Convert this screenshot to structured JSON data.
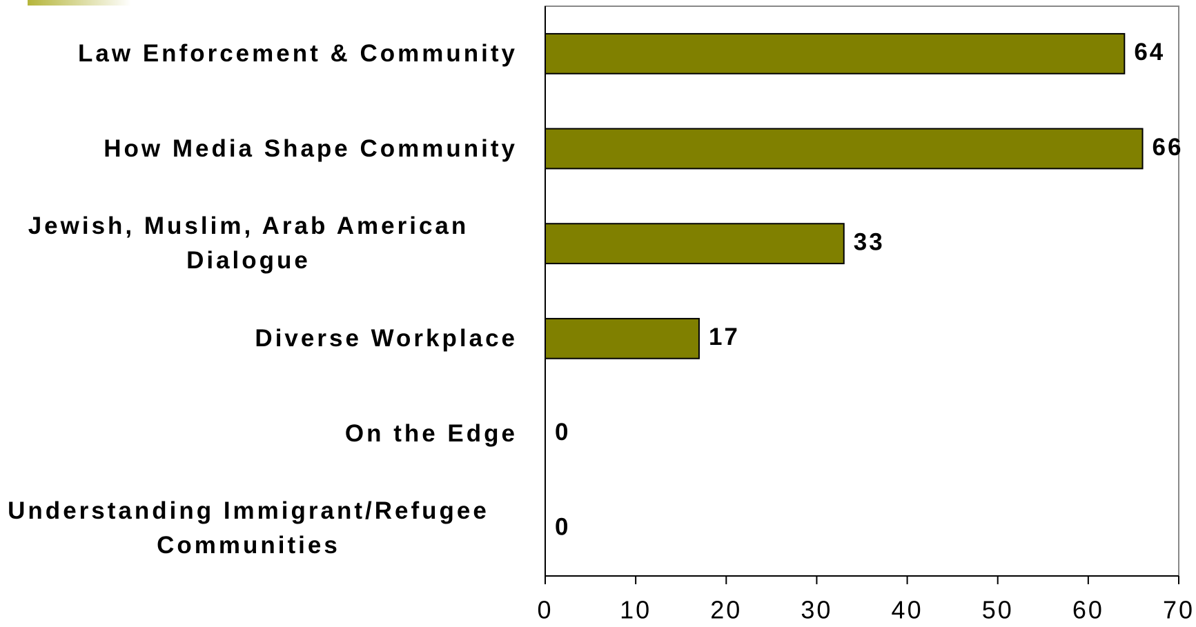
{
  "chart_data": {
    "type": "barh",
    "categories": [
      "Law Enforcement & Community",
      "How Media Shape Community",
      "Jewish, Muslim, Arab American Dialogue",
      "Diverse Workplace",
      "On the Edge",
      "Understanding Immigrant/Refugee Communities"
    ],
    "values": [
      64,
      66,
      33,
      17,
      0,
      0
    ],
    "color": "#808000",
    "xlim": [
      0,
      70
    ],
    "xticks": [
      0,
      10,
      20,
      30,
      40,
      50,
      60,
      70
    ],
    "grid": false
  }
}
